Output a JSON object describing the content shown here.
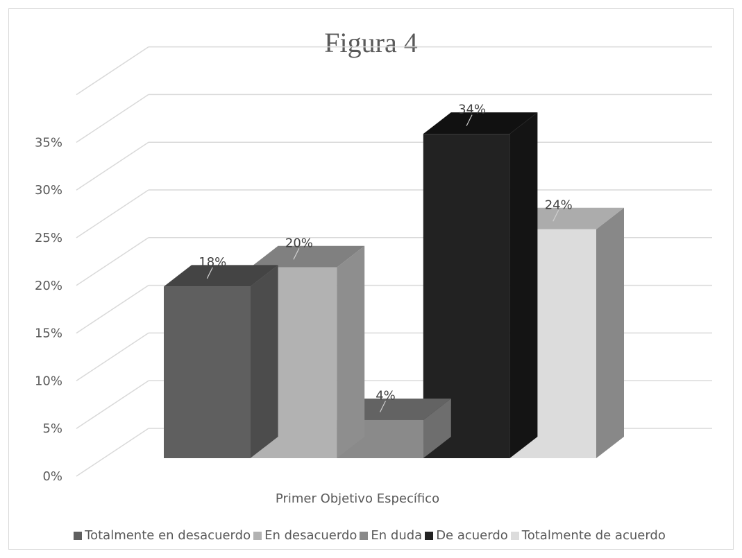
{
  "chart_data": {
    "type": "bar",
    "title": "Figura 4",
    "categories": [
      "Primer Objetivo Específico"
    ],
    "series": [
      {
        "name": "Totalmente en desacuerdo",
        "values": [
          18
        ],
        "label": "18%",
        "color": "#5f5f5f"
      },
      {
        "name": "En desacuerdo",
        "values": [
          20
        ],
        "label": "20%",
        "color": "#b2b2b2"
      },
      {
        "name": "En duda",
        "values": [
          4
        ],
        "label": "4%",
        "color": "#8a8a8a"
      },
      {
        "name": "De acuerdo",
        "values": [
          34
        ],
        "label": "34%",
        "color": "#222222"
      },
      {
        "name": "Totalmente de acuerdo",
        "values": [
          24
        ],
        "label": "24%",
        "color": "#dcdcdc"
      }
    ],
    "y_ticks": [
      "0%",
      "5%",
      "10%",
      "15%",
      "20%",
      "25%",
      "30%",
      "35%"
    ],
    "ylim": [
      0,
      40
    ],
    "xlabel": "",
    "ylabel": "",
    "grid": true,
    "legend_position": "bottom",
    "style": "3d-column"
  }
}
